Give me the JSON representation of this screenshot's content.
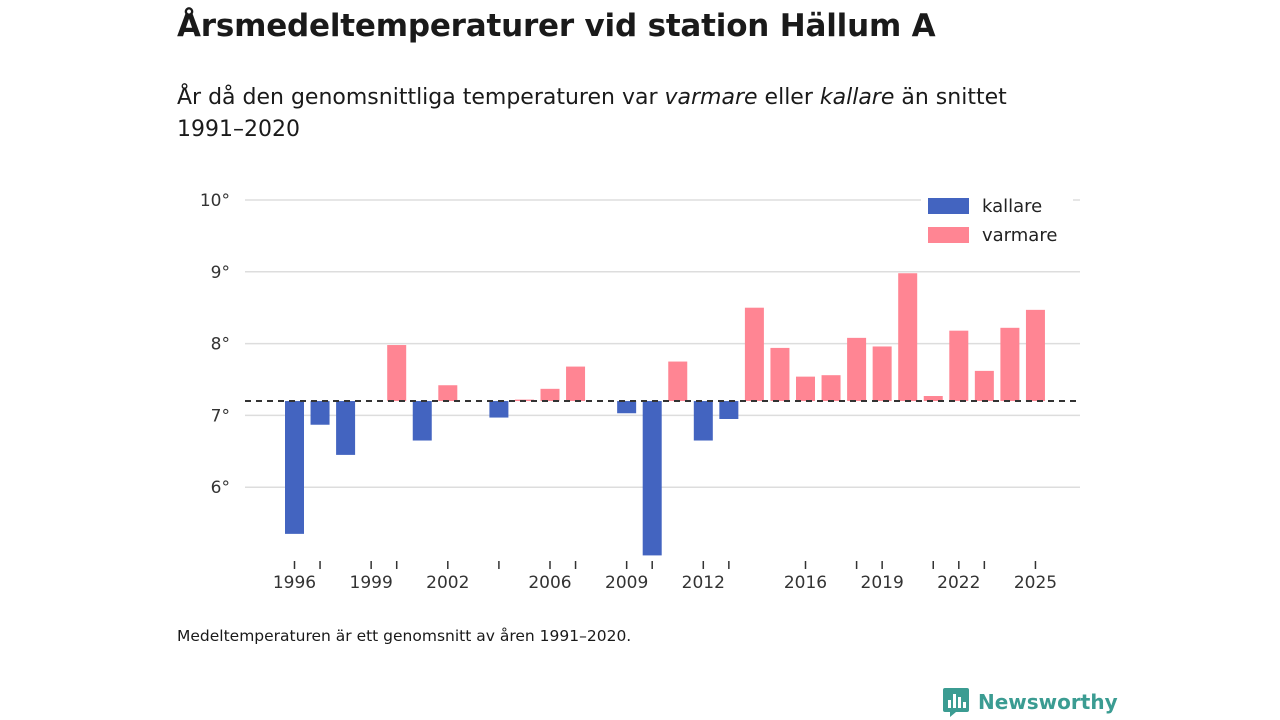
{
  "title": "Årsmedeltemperaturer vid station Hällum A",
  "subtitle": {
    "part1": "År då den genomsnittliga temperaturen var ",
    "warm_word": "varmare",
    "part2": " eller ",
    "cold_word": "kallare",
    "part3": " än snittet 1991–2020"
  },
  "footnote": "Medeltemperaturen är ett genomsnitt av åren 1991–2020.",
  "brand": {
    "name": "Newsworthy"
  },
  "colors": {
    "colder": "#4364c0",
    "warmer": "#ff8593",
    "grid": "#dddddd",
    "baseline": "#333333",
    "brand": "#3b9c92"
  },
  "chart_data": {
    "type": "bar",
    "baseline": 7.2,
    "ylim": [
      5.0,
      10.0
    ],
    "yticks": [
      6,
      7,
      8,
      9,
      10
    ],
    "ytick_labels": [
      "6°",
      "7°",
      "8°",
      "9°",
      "10°"
    ],
    "xlim": [
      1994,
      2026
    ],
    "xticks": [
      1996,
      1997,
      1999,
      2000,
      2002,
      2004,
      2006,
      2007,
      2009,
      2010,
      2012,
      2013,
      2016,
      2018,
      2019,
      2021,
      2022,
      2023,
      2025
    ],
    "xtick_labels": [
      {
        "year": 1996,
        "label": "1996"
      },
      {
        "year": 1999,
        "label": "1999"
      },
      {
        "year": 2002,
        "label": "2002"
      },
      {
        "year": 2006,
        "label": "2006"
      },
      {
        "year": 2009,
        "label": "2009"
      },
      {
        "year": 2012,
        "label": "2012"
      },
      {
        "year": 2016,
        "label": "2016"
      },
      {
        "year": 2019,
        "label": "2019"
      },
      {
        "year": 2022,
        "label": "2022"
      },
      {
        "year": 2025,
        "label": "2025"
      }
    ],
    "legend": [
      {
        "key": "colder",
        "label": "kallare"
      },
      {
        "key": "warmer",
        "label": "varmare"
      }
    ],
    "legend_position": "top-right",
    "categories": [
      1996,
      1997,
      1998,
      2000,
      2001,
      2002,
      2004,
      2005,
      2006,
      2007,
      2009,
      2010,
      2011,
      2012,
      2013,
      2014,
      2015,
      2016,
      2017,
      2018,
      2019,
      2020,
      2021,
      2022,
      2023,
      2024,
      2025
    ],
    "values": [
      5.35,
      6.87,
      6.45,
      7.98,
      6.65,
      7.42,
      6.97,
      7.22,
      7.37,
      7.68,
      7.03,
      5.05,
      7.75,
      6.65,
      6.95,
      8.5,
      7.94,
      7.54,
      7.56,
      8.08,
      7.96,
      8.98,
      7.27,
      8.18,
      7.62,
      8.22,
      8.47
    ]
  }
}
